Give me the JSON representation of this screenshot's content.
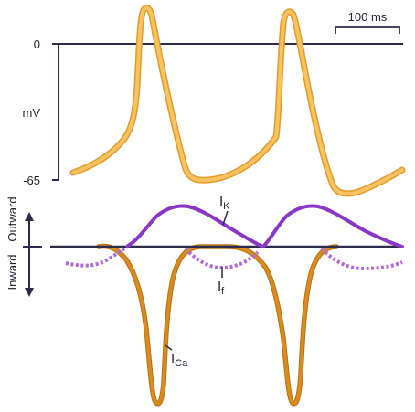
{
  "voltage_panel": {
    "y_unit": "mV",
    "tick_top": "0",
    "tick_bottom": "-65",
    "scale_bar": "100 ms"
  },
  "current_panel": {
    "outward_label": "Outward",
    "inward_label": "Inward",
    "ik_main": "I",
    "ik_sub": "K",
    "if_main": "I",
    "if_sub": "f",
    "ica_main": "I",
    "ica_sub": "Ca"
  },
  "colors": {
    "axis": "#2b2b4a",
    "action_potential": "#f7c360",
    "action_potential_edge": "#e39a2a",
    "i_k": "#8a36c7",
    "i_f": "#b26ae0",
    "i_ca": "#d98b20",
    "i_ca_edge": "#b8700f"
  }
}
